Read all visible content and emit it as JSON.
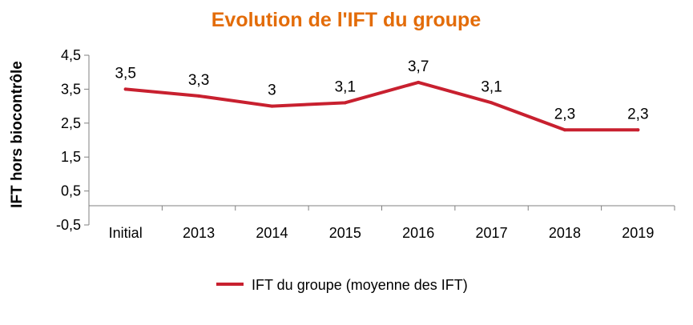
{
  "chart_data": {
    "type": "line",
    "title": "Evolution de l'IFT du groupe",
    "ylabel": "IFT  hors biocontrôle",
    "xlabel": "",
    "categories": [
      "Initial",
      "2013",
      "2014",
      "2015",
      "2016",
      "2017",
      "2018",
      "2019"
    ],
    "series": [
      {
        "name": "IFT du groupe (moyenne des IFT)",
        "values": [
          3.5,
          3.3,
          3.0,
          3.1,
          3.7,
          3.1,
          2.3,
          2.3
        ],
        "labels": [
          "3,5",
          "3,3",
          "3",
          "3,1",
          "3,7",
          "3,1",
          "2,3",
          "2,3"
        ],
        "color": "#C8202F"
      }
    ],
    "yticks": [
      {
        "value": 4.5,
        "label": "4,5"
      },
      {
        "value": 3.5,
        "label": "3,5"
      },
      {
        "value": 2.5,
        "label": "2,5"
      },
      {
        "value": 1.5,
        "label": "1,5"
      },
      {
        "value": 0.5,
        "label": "0,5"
      },
      {
        "value": -0.5,
        "label": "-0,5"
      }
    ],
    "ylim": [
      -0.5,
      4.5
    ],
    "grid": false,
    "legend": "bottom",
    "colors": {
      "title": "#E36C09",
      "axis": "#808080",
      "text": "#000000"
    }
  }
}
